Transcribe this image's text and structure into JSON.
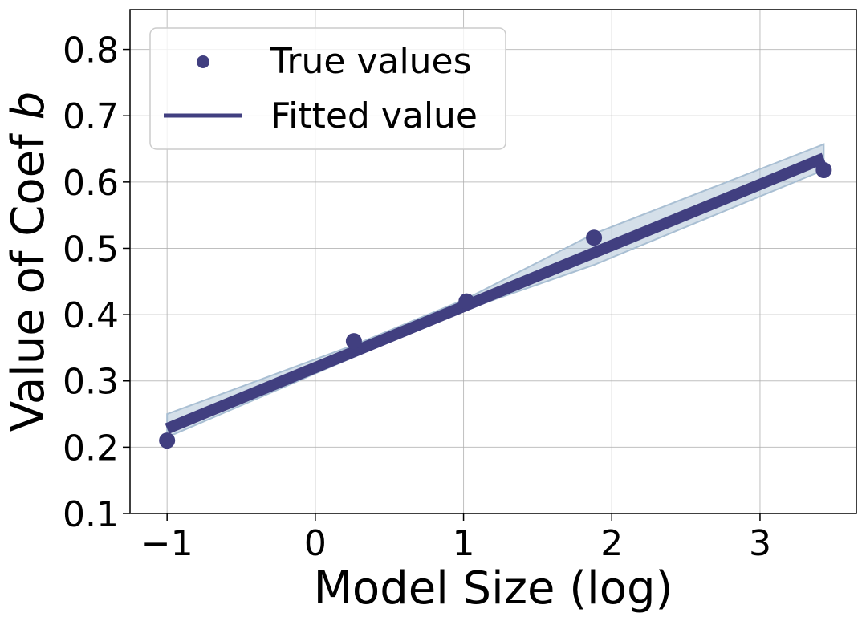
{
  "chart_data": {
    "type": "scatter",
    "title": "",
    "xlabel": "Model Size (log)",
    "ylabel_prefix": "Value of Coef ",
    "ylabel_var": "b",
    "xlim": [
      -1.25,
      3.65
    ],
    "ylim": [
      0.1,
      0.86
    ],
    "x_ticks": [
      -1,
      0,
      1,
      2,
      3
    ],
    "x_tick_labels": [
      "−1",
      "0",
      "1",
      "2",
      "3"
    ],
    "y_ticks": [
      0.1,
      0.2,
      0.3,
      0.4,
      0.5,
      0.6,
      0.7,
      0.8
    ],
    "y_tick_labels": [
      "0.1",
      "0.2",
      "0.3",
      "0.4",
      "0.5",
      "0.6",
      "0.7",
      "0.8"
    ],
    "grid": true,
    "legend_position": "top-left",
    "series": [
      {
        "name": "True values",
        "kind": "scatter",
        "color": "#413f80",
        "x": [
          -1.0,
          0.26,
          1.02,
          1.88,
          3.43
        ],
        "y": [
          0.21,
          0.36,
          0.42,
          0.516,
          0.618
        ]
      },
      {
        "name": "Fitted value",
        "kind": "line",
        "color": "#413f80",
        "x": [
          -1.0,
          3.43
        ],
        "y": [
          0.228,
          0.636
        ]
      }
    ],
    "confidence_band": {
      "color": "#a9bfd3",
      "x": [
        -1.0,
        0.26,
        1.02,
        1.88,
        3.43
      ],
      "upper": [
        0.25,
        0.354,
        0.424,
        0.522,
        0.657
      ],
      "lower": [
        0.215,
        0.336,
        0.408,
        0.475,
        0.618
      ]
    }
  }
}
